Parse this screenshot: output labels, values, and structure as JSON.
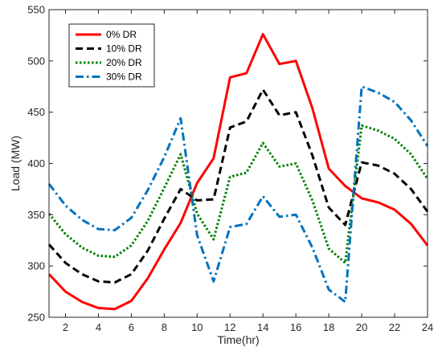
{
  "chart_data": {
    "type": "line",
    "title": "",
    "xlabel": "Time(hr)",
    "ylabel": "Load (MW)",
    "xlim": [
      1,
      24
    ],
    "ylim": [
      250,
      550
    ],
    "xticks": [
      2,
      4,
      6,
      8,
      10,
      12,
      14,
      16,
      18,
      20,
      22,
      24
    ],
    "yticks": [
      250,
      300,
      350,
      400,
      450,
      500,
      550
    ],
    "grid": false,
    "legend_position": "top-left",
    "x": [
      1,
      2,
      3,
      4,
      5,
      6,
      7,
      8,
      9,
      10,
      11,
      12,
      13,
      14,
      15,
      16,
      17,
      18,
      19,
      20,
      21,
      22,
      23,
      24
    ],
    "series": [
      {
        "name": "0% DR",
        "color": "#ff0000",
        "style": "solid",
        "values": [
          292,
          275,
          265,
          259,
          258,
          266,
          288,
          316,
          342,
          381,
          405,
          484,
          488,
          526,
          497,
          500,
          454,
          395,
          378,
          366,
          362,
          355,
          341,
          320
        ]
      },
      {
        "name": "10% DR",
        "color": "#000000",
        "style": "dashed",
        "values": [
          321,
          303,
          292,
          285,
          284,
          292,
          315,
          346,
          375,
          364,
          365,
          435,
          441,
          472,
          447,
          450,
          408,
          357,
          340,
          401,
          398,
          390,
          375,
          353
        ]
      },
      {
        "name": "20% DR",
        "color": "#008000",
        "style": "dotted",
        "values": [
          351,
          331,
          318,
          310,
          309,
          320,
          344,
          376,
          409,
          351,
          326,
          387,
          391,
          420,
          397,
          400,
          364,
          317,
          303,
          437,
          432,
          424,
          409,
          385
        ]
      },
      {
        "name": "30% DR",
        "color": "#0072bd",
        "style": "dashdot",
        "values": [
          380,
          359,
          345,
          336,
          335,
          347,
          374,
          406,
          444,
          330,
          285,
          338,
          341,
          368,
          348,
          350,
          318,
          277,
          265,
          475,
          469,
          460,
          442,
          417
        ]
      }
    ]
  }
}
